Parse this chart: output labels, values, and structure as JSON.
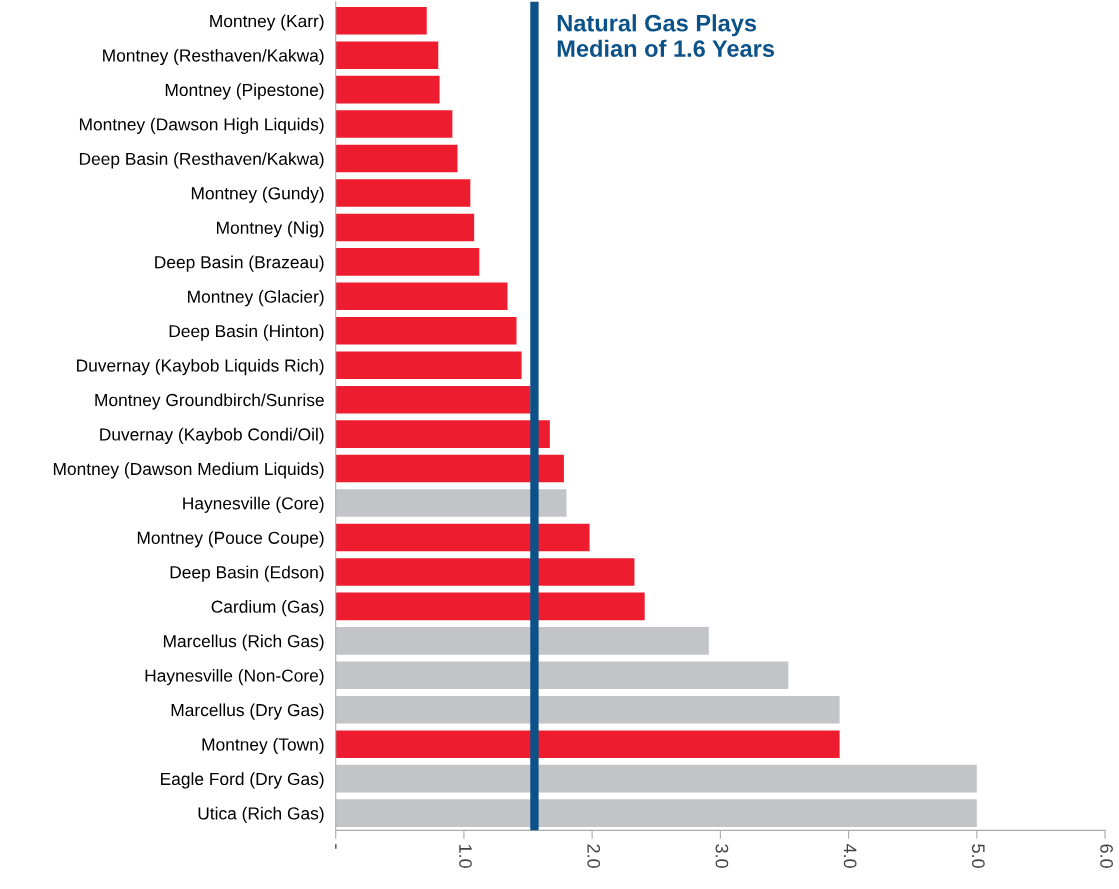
{
  "chart_data": {
    "type": "bar",
    "orientation": "horizontal",
    "categories": [
      "Montney (Karr)",
      "Montney (Resthaven/Kakwa)",
      "Montney (Pipestone)",
      "Montney (Dawson High Liquids)",
      "Deep Basin (Resthaven/Kakwa)",
      "Montney (Gundy)",
      "Montney (Nig)",
      "Deep Basin (Brazeau)",
      "Montney (Glacier)",
      "Deep Basin (Hinton)",
      "Duvernay (Kaybob Liquids Rich)",
      "Montney Groundbirch/Sunrise",
      "Duvernay (Kaybob Condi/Oil)",
      "Montney (Dawson Medium Liquids)",
      "Haynesville (Core)",
      "Montney (Pouce Coupe)",
      "Deep Basin (Edson)",
      "Cardium (Gas)",
      "Marcellus (Rich Gas)",
      "Haynesville (Non-Core)",
      "Marcellus (Dry Gas)",
      "Montney (Town)",
      "Eagle Ford (Dry Gas)",
      "Utica (Rich Gas)"
    ],
    "values": [
      0.71,
      0.8,
      0.81,
      0.91,
      0.95,
      1.05,
      1.08,
      1.12,
      1.34,
      1.41,
      1.45,
      1.52,
      1.67,
      1.78,
      1.8,
      1.98,
      2.33,
      2.41,
      2.91,
      3.53,
      3.93,
      3.93,
      5.0,
      5.0
    ],
    "colors": [
      "#ed1c2e",
      "#ed1c2e",
      "#ed1c2e",
      "#ed1c2e",
      "#ed1c2e",
      "#ed1c2e",
      "#ed1c2e",
      "#ed1c2e",
      "#ed1c2e",
      "#ed1c2e",
      "#ed1c2e",
      "#ed1c2e",
      "#ed1c2e",
      "#ed1c2e",
      "#c3c4c8",
      "#ed1c2e",
      "#ed1c2e",
      "#ed1c2e",
      "#c3c4c8",
      "#c3c4c8",
      "#c3c4c8",
      "#ed1c2e",
      "#c3c4c8",
      "#c3c4c8"
    ],
    "xlim": [
      0,
      6
    ],
    "xticks": [
      {
        "value": 0,
        "label": "-"
      },
      {
        "value": 1,
        "label": "1.0"
      },
      {
        "value": 2,
        "label": "2.0"
      },
      {
        "value": 3,
        "label": "3.0"
      },
      {
        "value": 4,
        "label": "4.0"
      },
      {
        "value": 5,
        "label": "5.0"
      },
      {
        "value": 6,
        "label": "6.0"
      }
    ],
    "ref_lines": [
      {
        "axis": "x",
        "value": 1.55,
        "label": "Natural Gas Plays\nMedian of 1.6 Years",
        "color": "#0c5289"
      }
    ],
    "grid": false
  }
}
